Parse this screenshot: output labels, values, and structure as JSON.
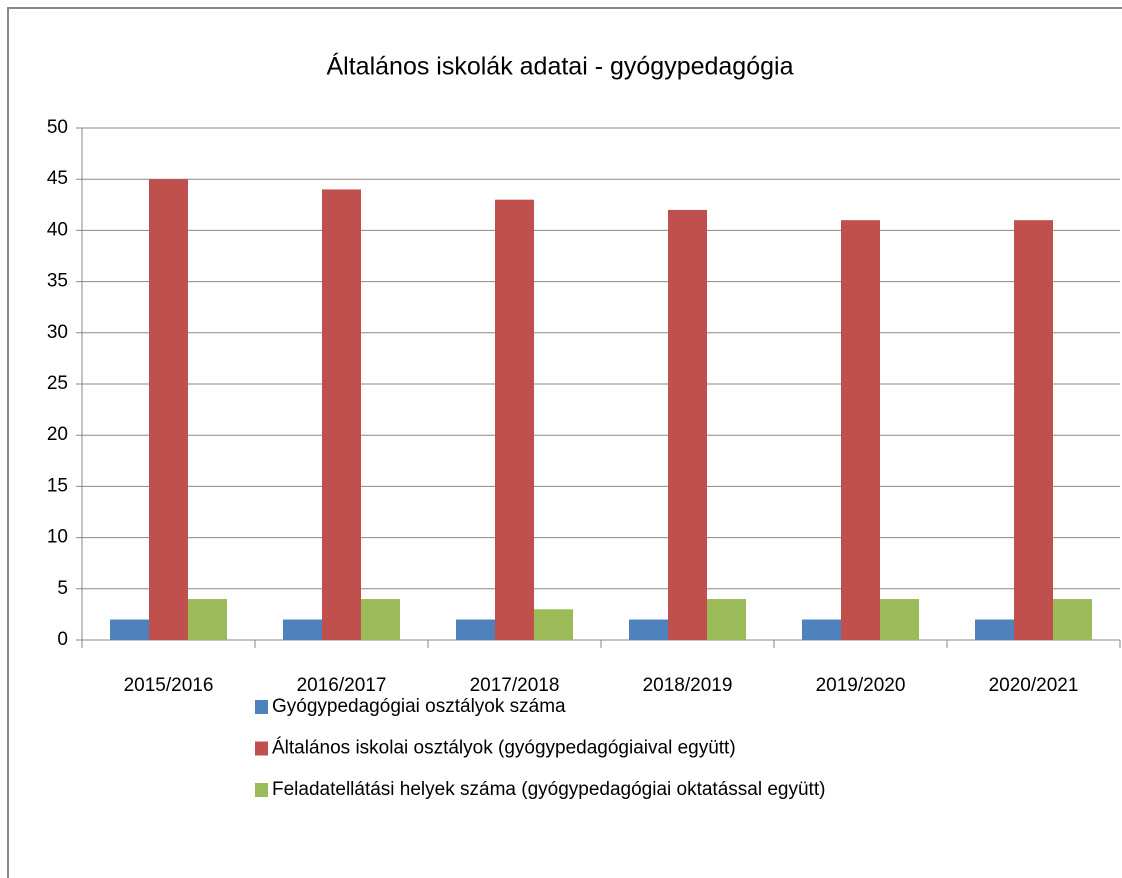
{
  "chart_data": {
    "type": "bar",
    "title": "Általános iskolák adatai - gyógypedagógia",
    "categories": [
      "2015/2016",
      "2016/2017",
      "2017/2018",
      "2018/2019",
      "2019/2020",
      "2020/2021"
    ],
    "series": [
      {
        "name": "Gyógypedagógiai osztályok száma",
        "color": "#4f81bd",
        "values": [
          2,
          2,
          2,
          2,
          2,
          2
        ]
      },
      {
        "name": "Általános iskolai osztályok (gyógypedagógiaival együtt)",
        "color": "#c0504d",
        "values": [
          45,
          44,
          43,
          42,
          41,
          41
        ]
      },
      {
        "name": "Feladatellátási helyek száma (gyógypedagógiai oktatással együtt)",
        "color": "#9bbb59",
        "values": [
          4,
          4,
          3,
          4,
          4,
          4
        ]
      }
    ],
    "ylim": [
      0,
      50
    ],
    "yticks": [
      0,
      5,
      10,
      15,
      20,
      25,
      30,
      35,
      40,
      45,
      50
    ],
    "grid": true,
    "legend": "bottom"
  }
}
